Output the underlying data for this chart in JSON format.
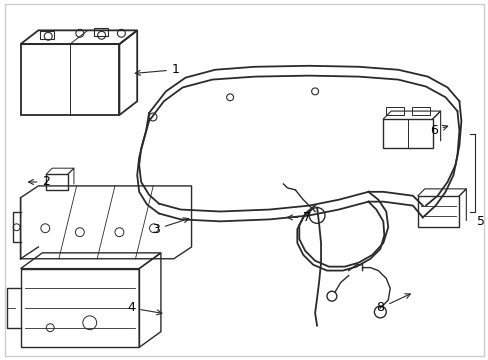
{
  "bg_color": "#ffffff",
  "line_color": "#2a2a2a",
  "fig_width": 4.89,
  "fig_height": 3.6,
  "dpi": 100,
  "border_color": "#cccccc"
}
